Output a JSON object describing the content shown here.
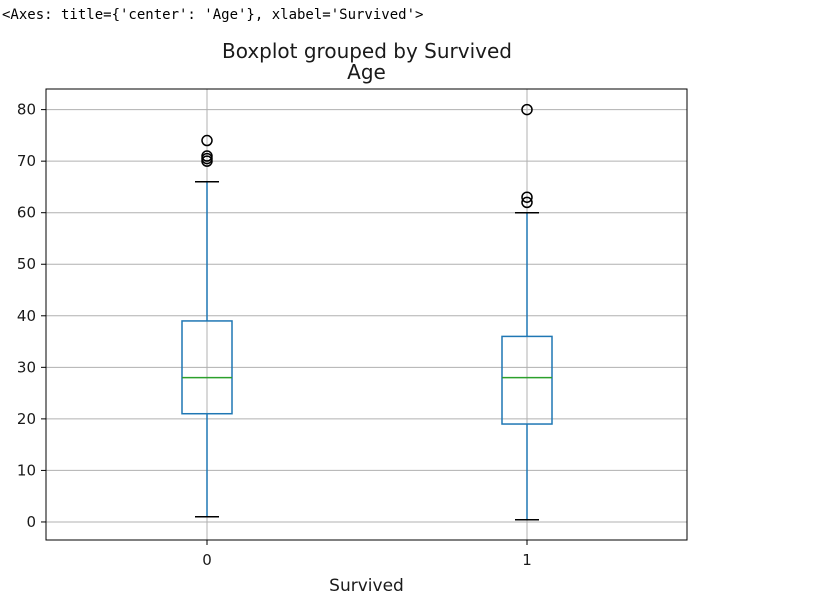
{
  "output_repr": "<Axes: title={'center': 'Age'}, xlabel='Survived'>",
  "chart_data": {
    "type": "box",
    "suptitle": "Boxplot grouped by Survived",
    "title": "Age",
    "xlabel": "Survived",
    "ylabel": "",
    "categories": [
      "0",
      "1"
    ],
    "ylim": [
      -3.5,
      84
    ],
    "yticks": [
      0,
      10,
      20,
      30,
      40,
      50,
      60,
      70,
      80
    ],
    "grid": true,
    "boxes": [
      {
        "category": "0",
        "whisker_low": 1,
        "q1": 21,
        "median": 28,
        "q3": 39,
        "whisker_high": 66,
        "fliers": [
          70,
          70.5,
          71,
          74
        ]
      },
      {
        "category": "1",
        "whisker_low": 0.42,
        "q1": 19,
        "median": 28,
        "q3": 36,
        "whisker_high": 60,
        "fliers": [
          62,
          63,
          80
        ]
      }
    ],
    "colors": {
      "box": "#1f77b4",
      "median": "#2ca02c",
      "cap": "#000000",
      "flier": "#000000",
      "grid": "#b0b0b0",
      "frame": "#000000"
    }
  }
}
